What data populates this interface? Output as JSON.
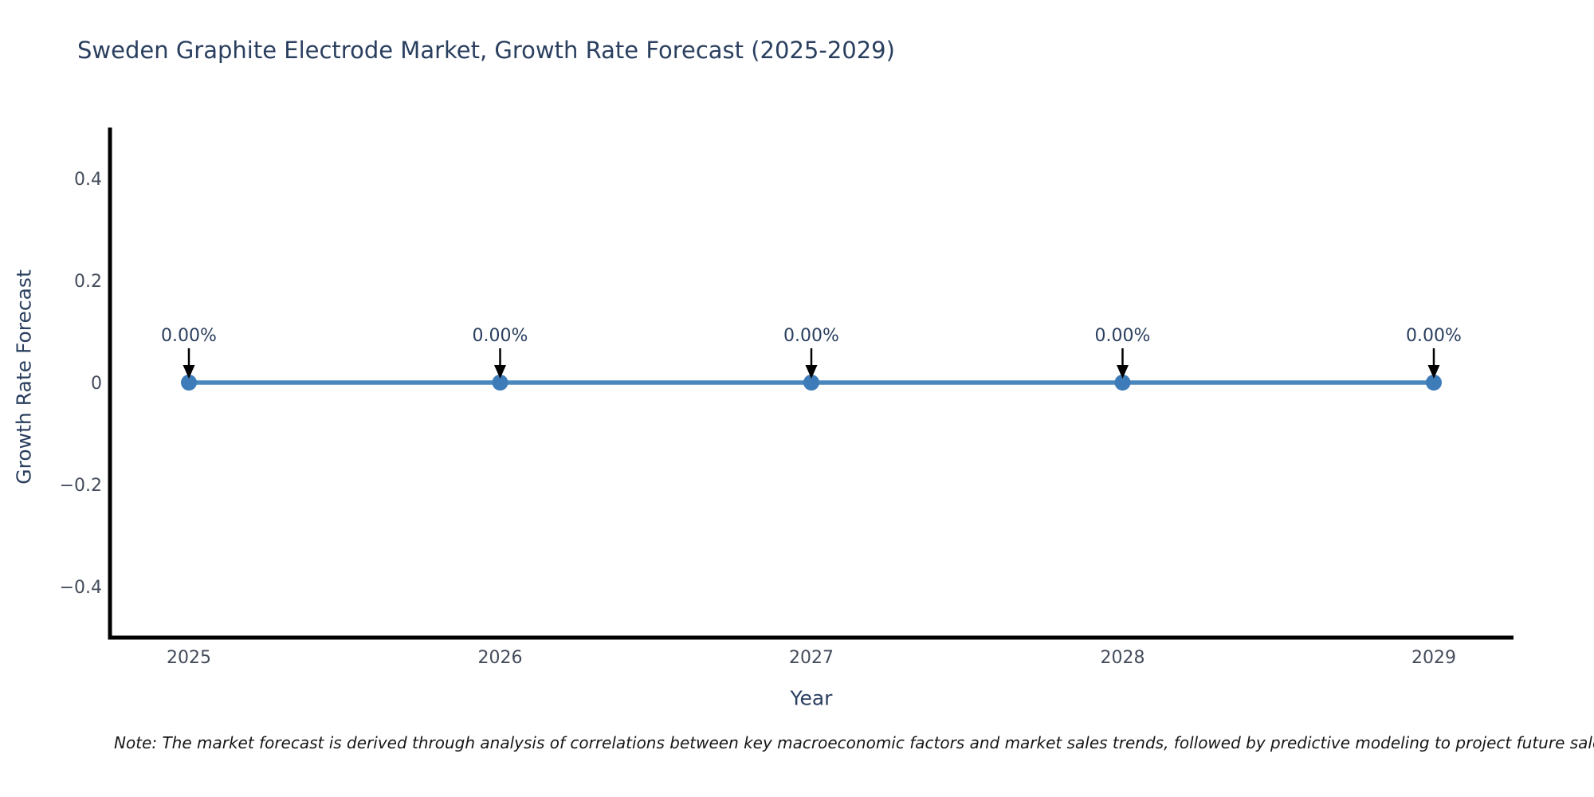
{
  "title": "Sweden Graphite Electrode Market, Growth Rate Forecast (2025-2029)",
  "note": "Note: The market forecast is derived through analysis of correlations between key macroeconomic factors and market sales trends, followed by predictive modeling to project future sales.",
  "colors": {
    "title_text": "#2a3f5f",
    "tick_text": "#444c5c",
    "annotation_text": "#2a3f5f",
    "axis_line": "#000000",
    "series_line": "#4a87bd",
    "marker_fill": "#3d7cb8",
    "arrow": "#000000",
    "background": "#ffffff"
  },
  "chart_data": {
    "type": "line",
    "title": "Sweden Graphite Electrode Market, Growth Rate Forecast (2025-2029)",
    "xlabel": "Year",
    "ylabel": "Growth Rate Forecast",
    "x": [
      2025,
      2026,
      2027,
      2028,
      2029
    ],
    "series": [
      {
        "name": "Growth Rate Forecast",
        "values": [
          0,
          0,
          0,
          0,
          0
        ],
        "point_labels": [
          "0.00%",
          "0.00%",
          "0.00%",
          "0.00%",
          "0.00%"
        ]
      }
    ],
    "ylim": [
      -0.5,
      0.5
    ],
    "yticks": [
      0.4,
      0.2,
      0,
      -0.2,
      -0.4
    ],
    "ytick_labels": [
      "0.4",
      "0.2",
      "0",
      "−0.2",
      "−0.4"
    ],
    "xtick_labels": [
      "2025",
      "2026",
      "2027",
      "2028",
      "2029"
    ],
    "grid": false,
    "legend": false,
    "annotations_have_arrows": true
  }
}
